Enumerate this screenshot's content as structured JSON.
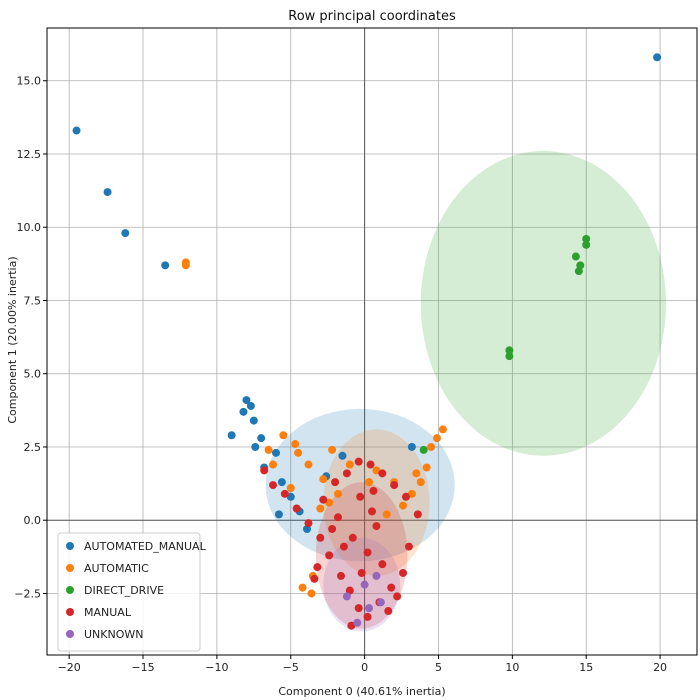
{
  "chart_data": {
    "type": "scatter",
    "title": "Row principal coordinates",
    "xlabel": "Component 0 (40.61% inertia)",
    "ylabel": "Component 1 (20.00% inertia)",
    "xlim": [
      -21.5,
      22.5
    ],
    "ylim": [
      -4.6,
      16.8
    ],
    "xticks": [
      -20,
      -15,
      -10,
      -5,
      0,
      5,
      10,
      15,
      20
    ],
    "yticks": [
      -2.5,
      0.0,
      2.5,
      5.0,
      7.5,
      10.0,
      12.5,
      15.0
    ],
    "ytick_labels": [
      "-2.5",
      "0.0",
      "2.5",
      "5.0",
      "7.5",
      "10.0",
      "12.5",
      "15.0"
    ],
    "grid": true,
    "legend_position": "lower-left",
    "series": [
      {
        "name": "AUTOMATED_MANUAL",
        "color": "#1f77b4",
        "points": [
          [
            -19.5,
            13.3
          ],
          [
            -17.4,
            11.2
          ],
          [
            -16.2,
            9.8
          ],
          [
            -13.5,
            8.7
          ],
          [
            19.8,
            15.8
          ],
          [
            -8.0,
            4.1
          ],
          [
            -7.7,
            3.9
          ],
          [
            -8.2,
            3.7
          ],
          [
            -7.5,
            3.4
          ],
          [
            -9.0,
            2.9
          ],
          [
            -7.0,
            2.8
          ],
          [
            -7.4,
            2.5
          ],
          [
            -6.0,
            2.3
          ],
          [
            -6.8,
            1.8
          ],
          [
            -5.6,
            1.3
          ],
          [
            -5.0,
            0.8
          ],
          [
            -4.4,
            0.3
          ],
          [
            -5.8,
            0.2
          ],
          [
            -3.9,
            -0.3
          ],
          [
            3.2,
            2.5
          ],
          [
            -1.5,
            2.2
          ],
          [
            -2.6,
            1.5
          ]
        ],
        "ellipse": {
          "cx": -0.3,
          "cy": 1.2,
          "rx": 6.4,
          "ry": 2.6
        }
      },
      {
        "name": "AUTOMATIC",
        "color": "#ff7f0e",
        "points": [
          [
            -12.1,
            8.8
          ],
          [
            -12.1,
            8.7
          ],
          [
            5.3,
            3.1
          ],
          [
            4.9,
            2.8
          ],
          [
            4.5,
            2.5
          ],
          [
            4.2,
            1.8
          ],
          [
            3.8,
            1.3
          ],
          [
            3.2,
            0.9
          ],
          [
            2.6,
            0.5
          ],
          [
            -4.5,
            2.3
          ],
          [
            -5.5,
            2.9
          ],
          [
            -3.8,
            1.9
          ],
          [
            -2.8,
            1.4
          ],
          [
            -3.5,
            -1.9
          ],
          [
            -4.2,
            -2.3
          ],
          [
            -2.2,
            2.4
          ],
          [
            -1.0,
            1.9
          ],
          [
            0.8,
            1.7
          ],
          [
            2.0,
            1.3
          ],
          [
            -6.2,
            1.9
          ],
          [
            -5.0,
            1.1
          ],
          [
            -3.0,
            0.4
          ],
          [
            -1.8,
            0.9
          ],
          [
            1.5,
            0.2
          ],
          [
            -4.7,
            2.6
          ],
          [
            -6.5,
            2.4
          ],
          [
            3.5,
            1.6
          ],
          [
            -3.6,
            -2.5
          ],
          [
            -2.4,
            0.6
          ],
          [
            0.3,
            1.3
          ]
        ],
        "ellipse": {
          "cx": 0.8,
          "cy": 0.6,
          "rx": 3.6,
          "ry": 2.5
        }
      },
      {
        "name": "DIRECT_DRIVE",
        "color": "#2ca02c",
        "points": [
          [
            15.0,
            9.6
          ],
          [
            15.0,
            9.4
          ],
          [
            14.3,
            9.0
          ],
          [
            14.6,
            8.7
          ],
          [
            14.5,
            8.5
          ],
          [
            9.8,
            5.8
          ],
          [
            9.8,
            5.6
          ],
          [
            4.0,
            2.4
          ]
        ],
        "ellipse": {
          "cx": 12.1,
          "cy": 7.4,
          "rx": 8.3,
          "ry": 5.2
        }
      },
      {
        "name": "MANUAL",
        "color": "#d62728",
        "points": [
          [
            -6.8,
            1.7
          ],
          [
            -6.2,
            1.2
          ],
          [
            -5.4,
            0.9
          ],
          [
            -4.6,
            0.4
          ],
          [
            -3.8,
            -0.1
          ],
          [
            -3.0,
            -0.6
          ],
          [
            -2.4,
            -1.2
          ],
          [
            -1.6,
            -1.9
          ],
          [
            -1.0,
            -2.4
          ],
          [
            -0.4,
            -3.0
          ],
          [
            0.2,
            -3.3
          ],
          [
            1.0,
            -2.8
          ],
          [
            1.8,
            -2.3
          ],
          [
            2.6,
            -1.8
          ],
          [
            3.0,
            -0.9
          ],
          [
            3.6,
            0.2
          ],
          [
            2.8,
            0.8
          ],
          [
            2.0,
            1.2
          ],
          [
            1.2,
            1.6
          ],
          [
            0.4,
            1.9
          ],
          [
            -0.4,
            2.0
          ],
          [
            -1.2,
            1.6
          ],
          [
            -2.0,
            1.3
          ],
          [
            -2.8,
            0.7
          ],
          [
            -1.8,
            0.1
          ],
          [
            -0.8,
            -0.6
          ],
          [
            0.2,
            -1.1
          ],
          [
            1.2,
            -1.5
          ],
          [
            0.5,
            0.3
          ],
          [
            -0.3,
            0.8
          ],
          [
            0.8,
            -0.2
          ],
          [
            -1.4,
            -0.9
          ],
          [
            -3.4,
            -2.0
          ],
          [
            -3.2,
            -1.6
          ],
          [
            -0.9,
            -3.6
          ],
          [
            1.6,
            -3.1
          ],
          [
            2.2,
            -2.6
          ],
          [
            -0.2,
            -1.8
          ],
          [
            0.6,
            1.0
          ],
          [
            -2.2,
            -0.3
          ]
        ],
        "ellipse": {
          "cx": -0.2,
          "cy": -1.2,
          "rx": 3.1,
          "ry": 2.5
        }
      },
      {
        "name": "UNKNOWN",
        "color": "#9467bd",
        "points": [
          [
            -0.5,
            -3.5
          ],
          [
            0.3,
            -3.0
          ],
          [
            1.1,
            -2.8
          ],
          [
            -1.2,
            -2.6
          ],
          [
            0.0,
            -2.2
          ],
          [
            0.8,
            -1.9
          ]
        ],
        "ellipse": {
          "cx": -0.2,
          "cy": -2.2,
          "rx": 2.6,
          "ry": 1.6
        }
      }
    ]
  }
}
